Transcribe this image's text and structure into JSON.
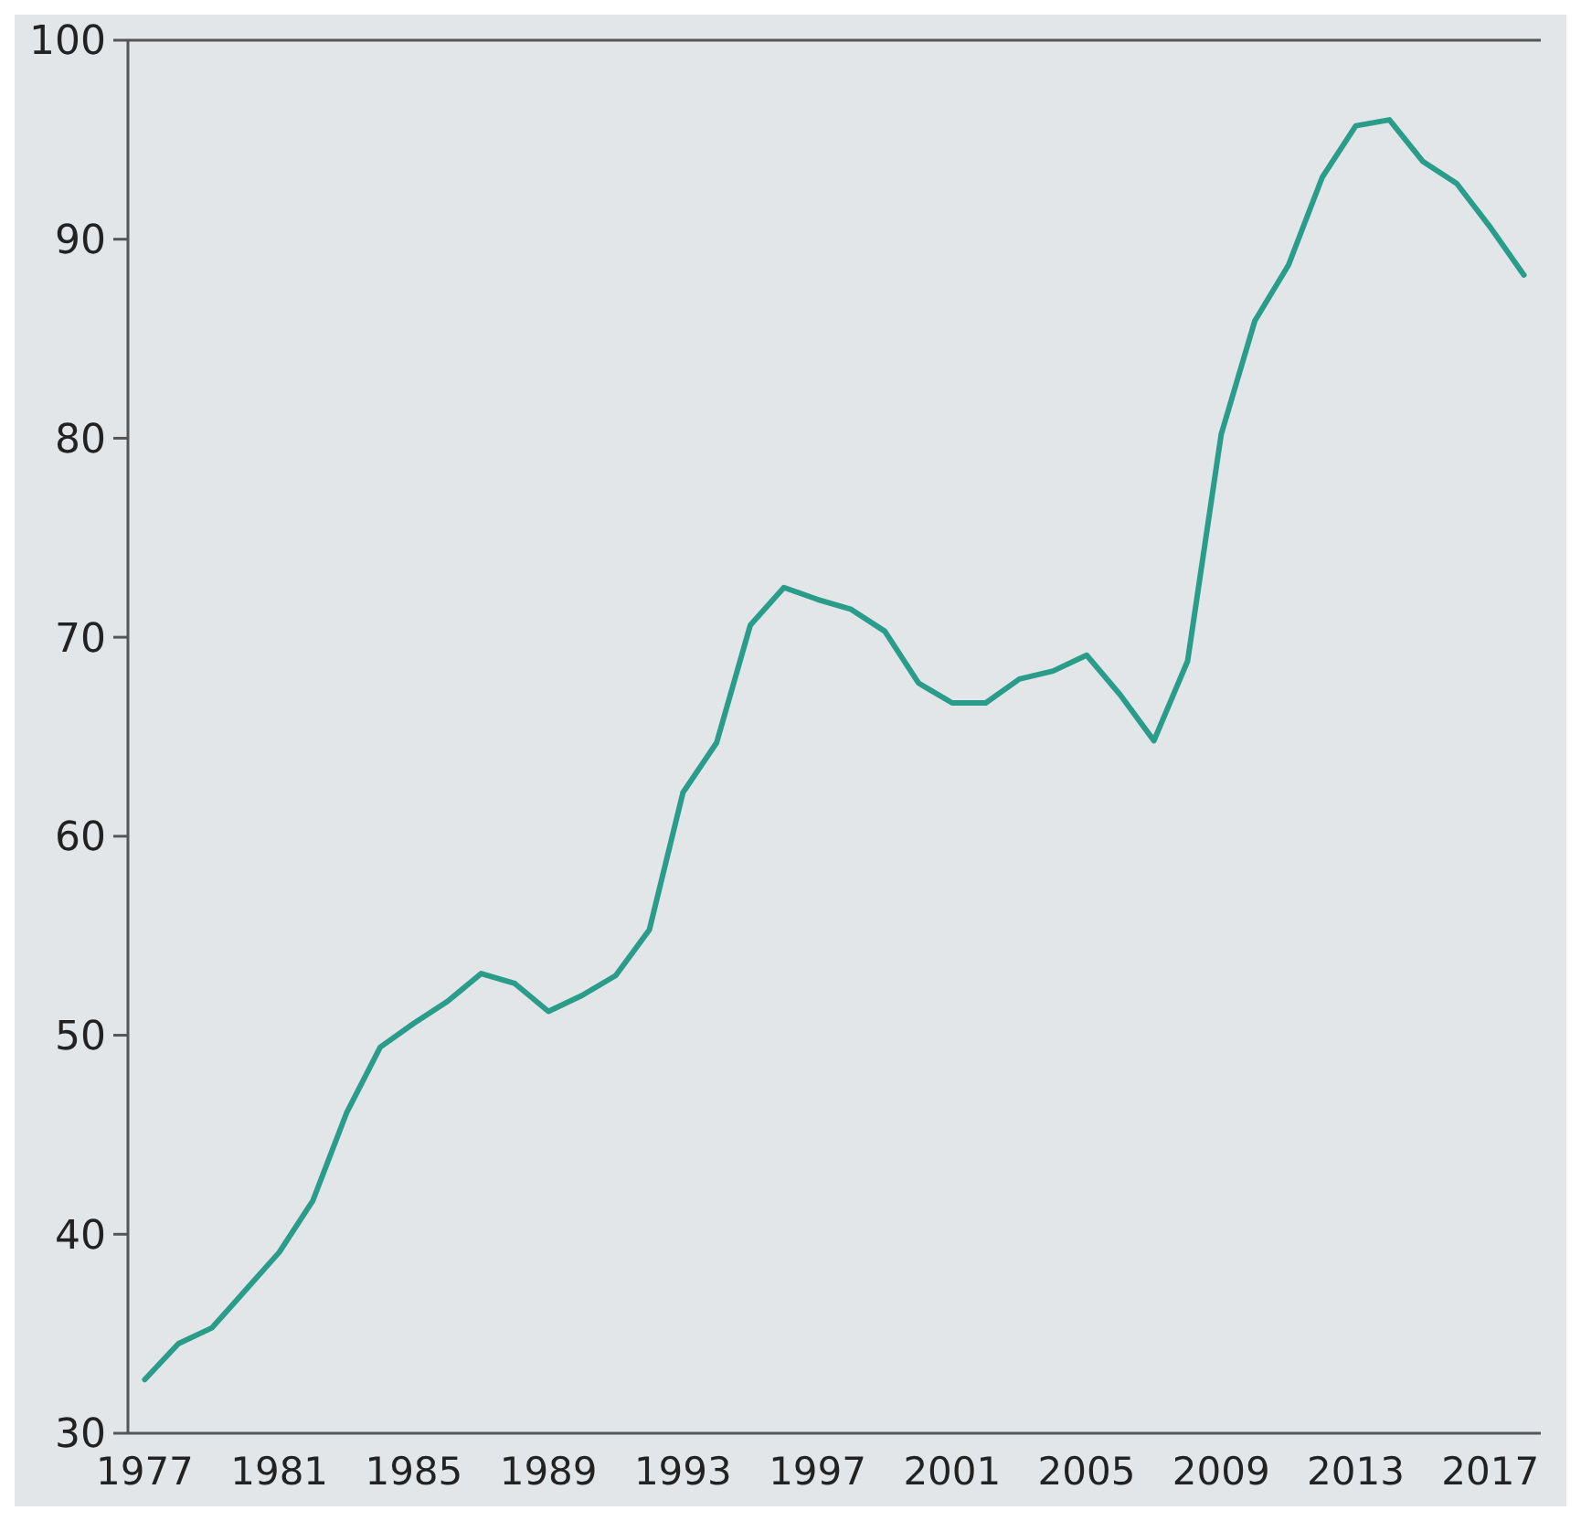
{
  "chart_data": {
    "type": "line",
    "x": [
      1977,
      1978,
      1979,
      1980,
      1981,
      1982,
      1983,
      1984,
      1985,
      1986,
      1987,
      1988,
      1989,
      1990,
      1991,
      1992,
      1993,
      1994,
      1995,
      1996,
      1997,
      1998,
      1999,
      2000,
      2001,
      2002,
      2003,
      2004,
      2005,
      2006,
      2007,
      2008,
      2009,
      2010,
      2011,
      2012,
      2013,
      2014,
      2015,
      2016,
      2017,
      2018
    ],
    "series": [
      {
        "color": "#2a9d8a",
        "values": [
          32.7,
          34.5,
          35.3,
          37.2,
          39.1,
          41.7,
          46.1,
          49.4,
          50.6,
          51.7,
          53.1,
          52.6,
          51.2,
          52.0,
          53.0,
          55.3,
          62.2,
          64.7,
          70.6,
          72.5,
          71.9,
          71.4,
          70.3,
          67.7,
          66.7,
          66.7,
          67.9,
          68.3,
          69.1,
          67.1,
          64.8,
          68.8,
          80.2,
          85.9,
          88.7,
          93.1,
          95.7,
          96.0,
          93.9,
          92.8,
          90.6,
          88.2
        ]
      }
    ],
    "xlim": [
      1976.5,
      2018.5
    ],
    "xticks": [
      1977,
      1981,
      1985,
      1989,
      1993,
      1997,
      2001,
      2005,
      2009,
      2013,
      2017
    ],
    "ylim": [
      30,
      100
    ],
    "yticks": [
      30,
      40,
      50,
      60,
      70,
      80,
      90,
      100
    ],
    "grid": false,
    "marker": "none",
    "line_style": "solid"
  }
}
